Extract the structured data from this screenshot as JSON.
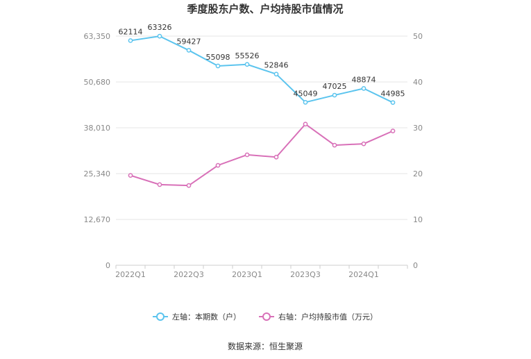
{
  "chart_data": {
    "type": "line",
    "title": "季度股东户数、户均持股市值情况",
    "categories": [
      "2022Q1",
      "2022Q2",
      "2022Q3",
      "2022Q4",
      "2023Q1",
      "2023Q2",
      "2023Q3",
      "2023Q4",
      "2024Q1",
      "2024Q2"
    ],
    "x_tick_labels": [
      "2022Q1",
      "2022Q3",
      "2023Q1",
      "2023Q3",
      "2024Q1"
    ],
    "left_axis": {
      "ticks": [
        "0",
        "12,670",
        "25,340",
        "38,010",
        "50,680",
        "63,350"
      ],
      "ylim": [
        0,
        63350
      ]
    },
    "right_axis": {
      "ticks": [
        "0",
        "10",
        "20",
        "30",
        "40",
        "50"
      ],
      "ylim": [
        0,
        50
      ]
    },
    "series": [
      {
        "name": "左轴：本期数（户）",
        "axis": "left",
        "color": "#5bc4ee",
        "values": [
          62114,
          63326,
          59427,
          55098,
          55526,
          52846,
          45049,
          47025,
          48874,
          44985
        ],
        "labels": [
          "62114",
          "63326",
          "59427",
          "55098",
          "55526",
          "52846",
          "45049",
          "47025",
          "48874",
          "44985"
        ]
      },
      {
        "name": "右轴：户均持股市值（万元）",
        "axis": "right",
        "color": "#d870b8",
        "values": [
          19.6,
          17.6,
          17.4,
          21.8,
          24.1,
          23.6,
          30.8,
          26.2,
          26.5,
          29.3
        ]
      }
    ],
    "grid": true,
    "legend_position": "bottom",
    "source": "数据来源：恒生聚源"
  }
}
